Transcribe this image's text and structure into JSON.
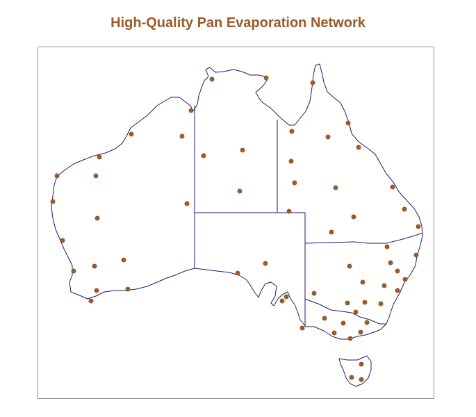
{
  "title": "High-Quality Pan Evaporation Network",
  "colors": {
    "title": "#9a5a2a",
    "station": "#9a5a2a",
    "outline": "#1a1a6e",
    "frame": "#8c8c8c"
  },
  "stations_count_label": "",
  "map": {
    "region": "Australia",
    "layers": [
      "coastline",
      "state-borders",
      "stations"
    ]
  }
}
